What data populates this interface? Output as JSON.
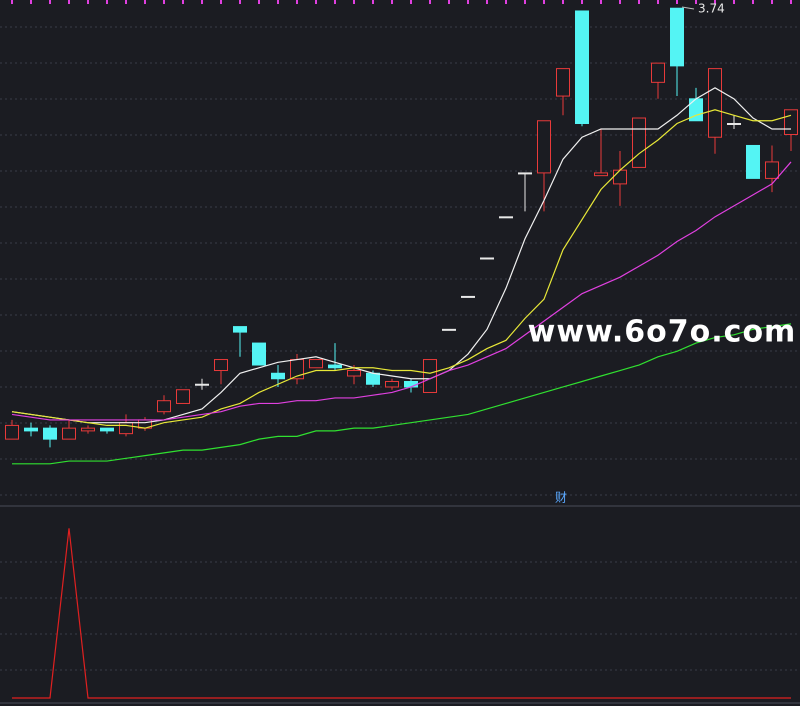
{
  "chart_data": [
    {
      "type": "candlestick",
      "open": [
        2.17,
        2.21,
        2.21,
        2.17,
        2.2,
        2.21,
        2.19,
        2.21,
        2.27,
        2.3,
        2.37,
        2.42,
        2.58,
        2.52,
        2.41,
        2.39,
        2.43,
        2.44,
        2.4,
        2.41,
        2.36,
        2.38,
        2.34,
        2.57,
        2.69,
        2.83,
        2.98,
        3.14,
        3.14,
        3.42,
        3.73,
        3.13,
        3.1,
        3.16,
        3.47,
        3.74,
        3.41,
        3.27,
        3.32,
        3.24,
        3.12,
        3.28
      ],
      "high": [
        2.24,
        2.23,
        2.22,
        2.24,
        2.22,
        2.21,
        2.26,
        2.25,
        2.33,
        2.35,
        2.39,
        2.46,
        2.58,
        2.52,
        2.44,
        2.48,
        2.46,
        2.52,
        2.44,
        2.42,
        2.39,
        2.39,
        2.46,
        2.57,
        2.69,
        2.83,
        2.98,
        3.14,
        3.33,
        3.52,
        3.73,
        3.3,
        3.22,
        3.34,
        3.54,
        3.74,
        3.45,
        3.52,
        3.35,
        3.24,
        3.24,
        3.37
      ],
      "low": [
        2.17,
        2.18,
        2.14,
        2.17,
        2.19,
        2.19,
        2.18,
        2.2,
        2.26,
        2.3,
        2.35,
        2.37,
        2.47,
        2.44,
        2.36,
        2.37,
        2.43,
        2.42,
        2.37,
        2.36,
        2.35,
        2.34,
        2.34,
        2.57,
        2.69,
        2.83,
        2.98,
        3.0,
        3.0,
        3.35,
        3.31,
        3.13,
        3.02,
        3.16,
        3.41,
        3.42,
        3.33,
        3.21,
        3.3,
        3.12,
        3.07,
        3.22
      ],
      "close": [
        2.22,
        2.2,
        2.17,
        2.21,
        2.21,
        2.2,
        2.23,
        2.24,
        2.31,
        2.35,
        2.37,
        2.46,
        2.56,
        2.44,
        2.39,
        2.46,
        2.46,
        2.43,
        2.42,
        2.37,
        2.38,
        2.36,
        2.46,
        2.57,
        2.69,
        2.83,
        2.98,
        3.14,
        3.33,
        3.52,
        3.32,
        3.14,
        3.15,
        3.34,
        3.54,
        3.53,
        3.33,
        3.52,
        3.32,
        3.12,
        3.18,
        3.37
      ],
      "up_color": "#e83a3a",
      "down_color": "#54f4f4",
      "flat_color": "#e8e8e8",
      "series": [
        {
          "color": "#f0f0f0",
          "values": [
            2.27,
            2.26,
            2.25,
            2.24,
            2.23,
            2.23,
            2.23,
            2.23,
            2.24,
            2.26,
            2.28,
            2.34,
            2.41,
            2.43,
            2.45,
            2.46,
            2.47,
            2.45,
            2.43,
            2.41,
            2.4,
            2.39,
            2.39,
            2.42,
            2.48,
            2.57,
            2.72,
            2.9,
            3.04,
            3.19,
            3.27,
            3.3,
            3.3,
            3.3,
            3.3,
            3.35,
            3.41,
            3.45,
            3.41,
            3.34,
            3.3,
            3.3
          ]
        },
        {
          "color": "#e8e838",
          "values": [
            2.27,
            2.26,
            2.25,
            2.24,
            2.23,
            2.22,
            2.22,
            2.21,
            2.23,
            2.24,
            2.25,
            2.28,
            2.3,
            2.34,
            2.37,
            2.4,
            2.42,
            2.42,
            2.43,
            2.43,
            2.42,
            2.42,
            2.41,
            2.43,
            2.46,
            2.5,
            2.53,
            2.61,
            2.68,
            2.86,
            2.97,
            3.08,
            3.15,
            3.21,
            3.26,
            3.32,
            3.35,
            3.37,
            3.35,
            3.33,
            3.33,
            3.35
          ]
        },
        {
          "color": "#e040e0",
          "values": [
            2.26,
            2.25,
            2.24,
            2.24,
            2.24,
            2.24,
            2.24,
            2.24,
            2.24,
            2.25,
            2.26,
            2.27,
            2.29,
            2.3,
            2.3,
            2.31,
            2.31,
            2.32,
            2.32,
            2.33,
            2.34,
            2.36,
            2.39,
            2.42,
            2.44,
            2.47,
            2.5,
            2.55,
            2.6,
            2.65,
            2.7,
            2.73,
            2.76,
            2.8,
            2.84,
            2.89,
            2.93,
            2.98,
            3.02,
            3.06,
            3.1,
            3.18
          ]
        },
        {
          "color": "#30e030",
          "values": [
            2.08,
            2.08,
            2.08,
            2.09,
            2.09,
            2.09,
            2.1,
            2.11,
            2.12,
            2.13,
            2.13,
            2.14,
            2.15,
            2.17,
            2.18,
            2.18,
            2.2,
            2.2,
            2.21,
            2.21,
            2.22,
            2.23,
            2.24,
            2.25,
            2.26,
            2.28,
            2.3,
            2.32,
            2.34,
            2.36,
            2.38,
            2.4,
            2.42,
            2.44,
            2.47,
            2.49,
            2.52,
            2.54,
            2.55,
            2.57,
            2.58,
            2.59
          ]
        }
      ],
      "ylim": [
        1.93,
        3.77
      ],
      "annotations": [
        "3.74",
        "财"
      ],
      "watermark": "www.6o7o.com"
    },
    {
      "type": "line",
      "series": [
        {
          "color": "#e02020",
          "values": [
            0,
            0,
            0,
            1,
            0,
            0,
            0,
            0,
            0,
            0,
            0,
            0,
            0,
            0,
            0,
            0,
            0,
            0,
            0,
            0,
            0,
            0,
            0,
            0,
            0,
            0,
            0,
            0,
            0,
            0,
            0,
            0,
            0,
            0,
            0,
            0,
            0,
            0,
            0,
            0,
            0,
            0
          ]
        }
      ],
      "ylim": [
        0,
        1.12
      ]
    }
  ]
}
